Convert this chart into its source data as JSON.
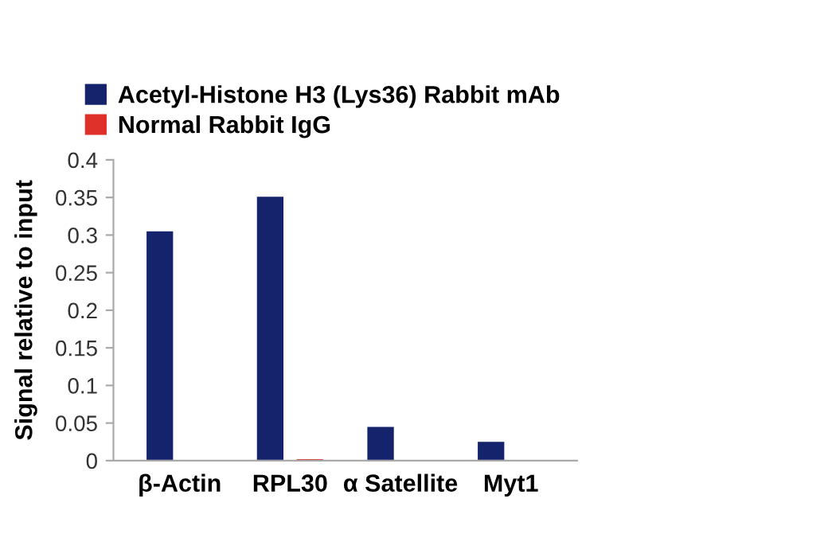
{
  "chart_data": {
    "type": "bar",
    "ylabel": "Signal relative to input",
    "categories": [
      "β-Actin",
      "RPL30",
      "α Satellite",
      "Myt1"
    ],
    "series": [
      {
        "name": "Acetyl-Histone H3 (Lys36) Rabbit mAb",
        "color": "#14236b",
        "values": [
          0.305,
          0.351,
          0.045,
          0.025
        ]
      },
      {
        "name": "Normal Rabbit IgG",
        "color": "#e0302a",
        "values": [
          0,
          0.002,
          0,
          0
        ]
      }
    ],
    "ylim": [
      0,
      0.4
    ],
    "yticks": [
      0,
      0.05,
      0.1,
      0.15,
      0.2,
      0.25,
      0.3,
      0.35,
      0.4
    ],
    "grid": false,
    "legend": "top left"
  }
}
